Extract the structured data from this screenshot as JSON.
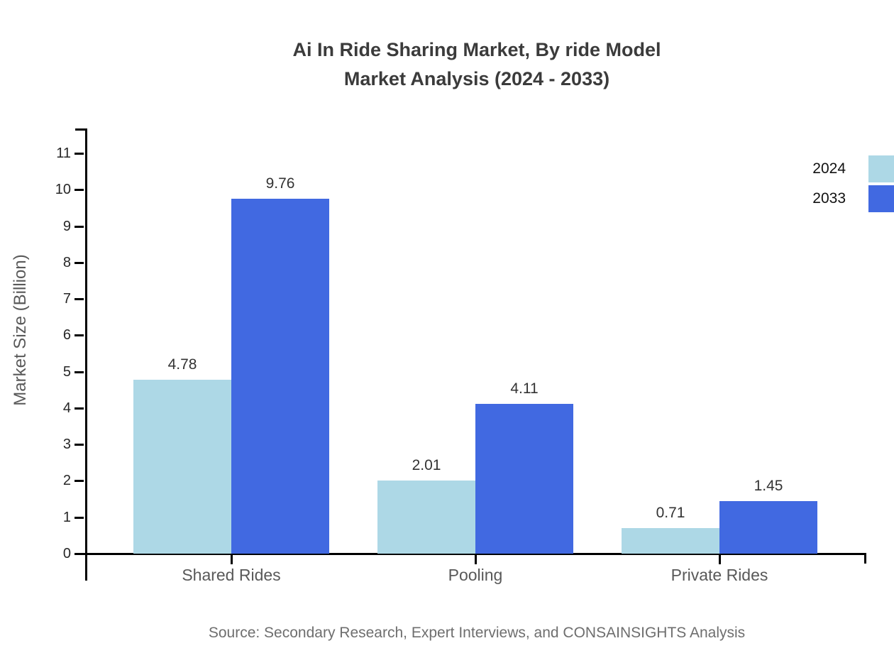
{
  "title": {
    "line1": "Ai In Ride Sharing Market, By ride Model",
    "line2": "Market Analysis (2024 - 2033)"
  },
  "source": "Source: Secondary Research, Expert Interviews, and CONSAINSIGHTS Analysis",
  "chart_data": {
    "type": "bar",
    "categories": [
      "Shared Rides",
      "Pooling",
      "Private Rides"
    ],
    "series": [
      {
        "name": "2024",
        "color": "#ADD8E6",
        "values": [
          4.78,
          2.01,
          0.71
        ]
      },
      {
        "name": "2033",
        "color": "#4169E1",
        "values": [
          9.76,
          4.11,
          1.45
        ]
      }
    ],
    "title": "Ai In Ride Sharing Market, By ride Model Market Analysis (2024 - 2033)",
    "xlabel": "",
    "ylabel": "Market Size (Billion)",
    "ylim": [
      0,
      11
    ],
    "ytick_step": 1,
    "grid": false,
    "legend_position": "top-right",
    "value_label_decimals": 2,
    "colors": {
      "axis": "#000000",
      "title_text": "#3b3b3b",
      "tick_text": "#262626",
      "category_text": "#595959",
      "value_text": "#333333",
      "source_text": "#6e6e6e"
    }
  }
}
